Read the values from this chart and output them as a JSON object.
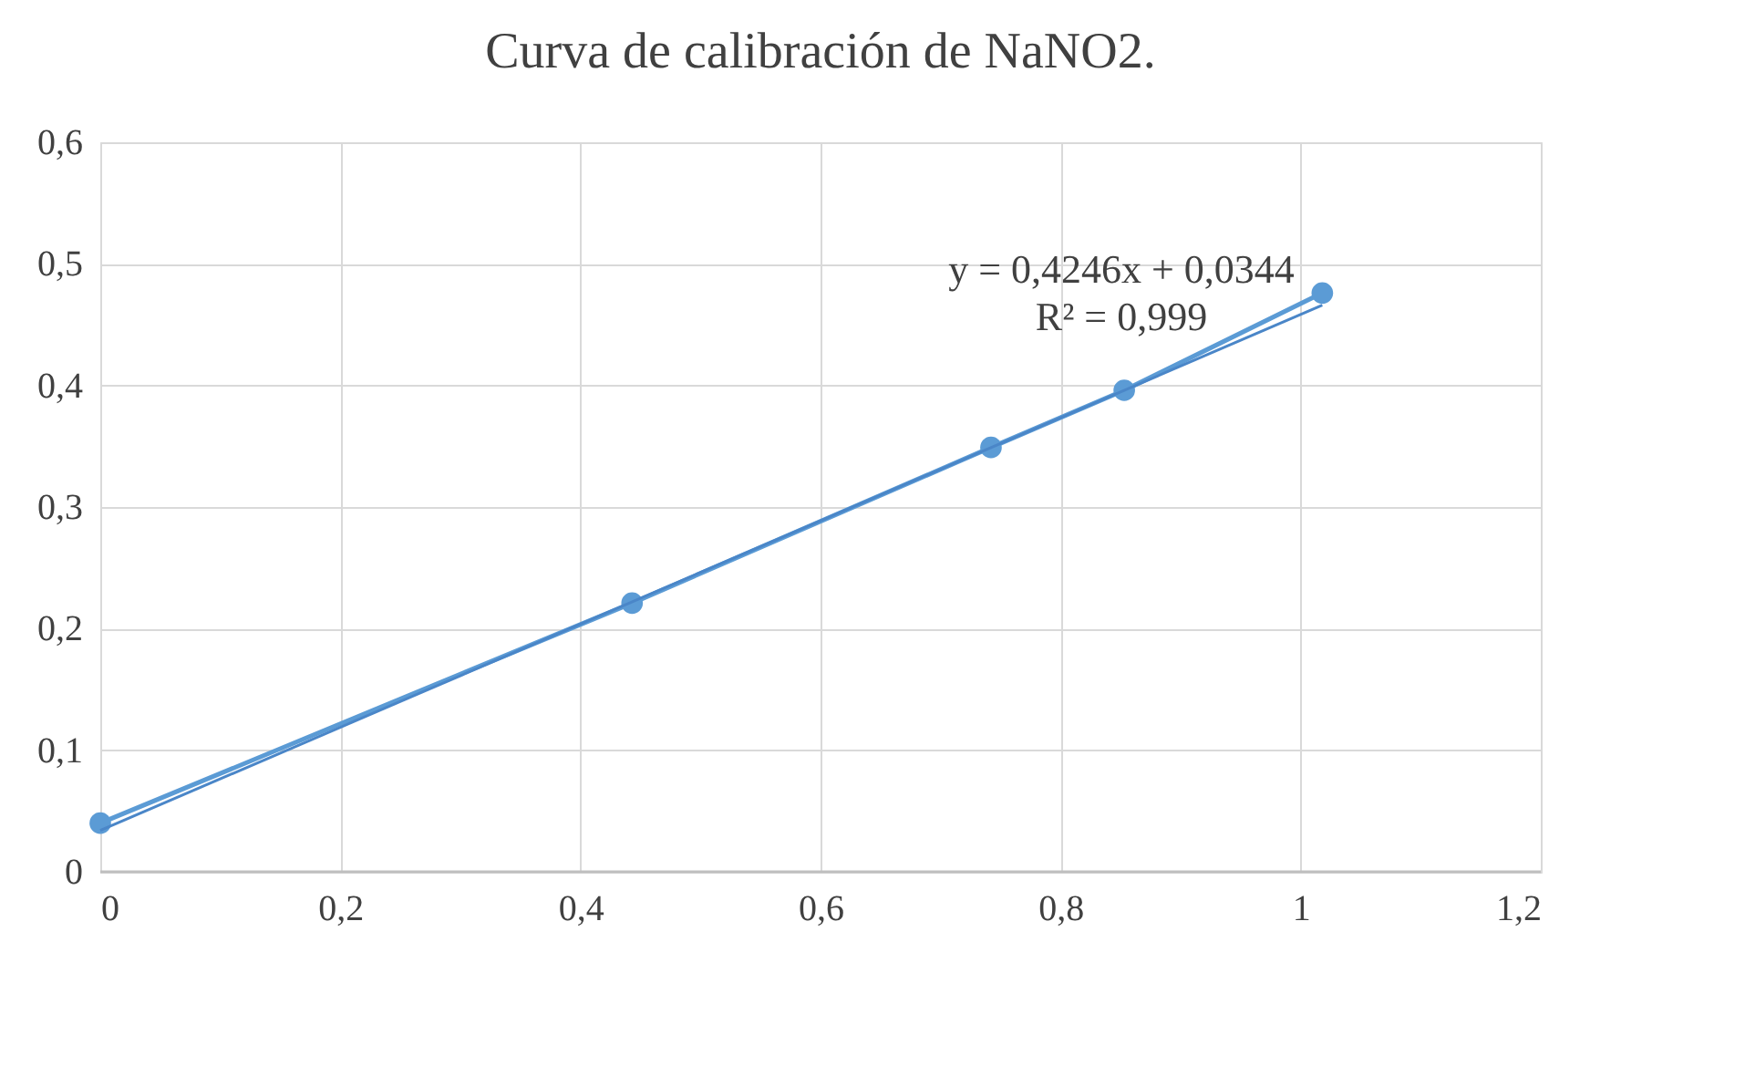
{
  "chart_data": {
    "type": "line",
    "title": "Curva de calibración  de NaNO2.",
    "x": [
      0,
      0.443,
      0.742,
      0.853,
      1.018
    ],
    "series": [
      {
        "color": "#5b9bd5",
        "values": [
          0.04,
          0.221,
          0.349,
          0.396,
          0.476
        ],
        "marker": "circle"
      },
      {
        "type": "line",
        "color": "#4a86c8",
        "x": [
          0,
          1.018
        ],
        "values": [
          0.034,
          0.466
        ],
        "marker": "none"
      }
    ],
    "xlim": [
      0,
      1.2
    ],
    "ylim": [
      0,
      0.6
    ],
    "xticks": [
      0,
      {
        "value": 0.2,
        "label": "0,2"
      },
      {
        "value": 0.4,
        "label": "0,4"
      },
      {
        "value": 0.6,
        "label": "0,6"
      },
      {
        "value": 0.8,
        "label": "0,8"
      },
      1,
      {
        "value": 1.2,
        "label": "1,2"
      }
    ],
    "yticks": [
      0,
      {
        "value": 0.1,
        "label": "0,1"
      },
      {
        "value": 0.2,
        "label": "0,2"
      },
      {
        "value": 0.3,
        "label": "0,3"
      },
      {
        "value": 0.4,
        "label": "0,4"
      },
      {
        "value": 0.5,
        "label": "0,5"
      },
      {
        "value": 0.6,
        "label": "0,6"
      }
    ],
    "annotations": [
      "y = 0,4246x + 0,0344",
      "R² = 0,999"
    ],
    "grid": true
  }
}
